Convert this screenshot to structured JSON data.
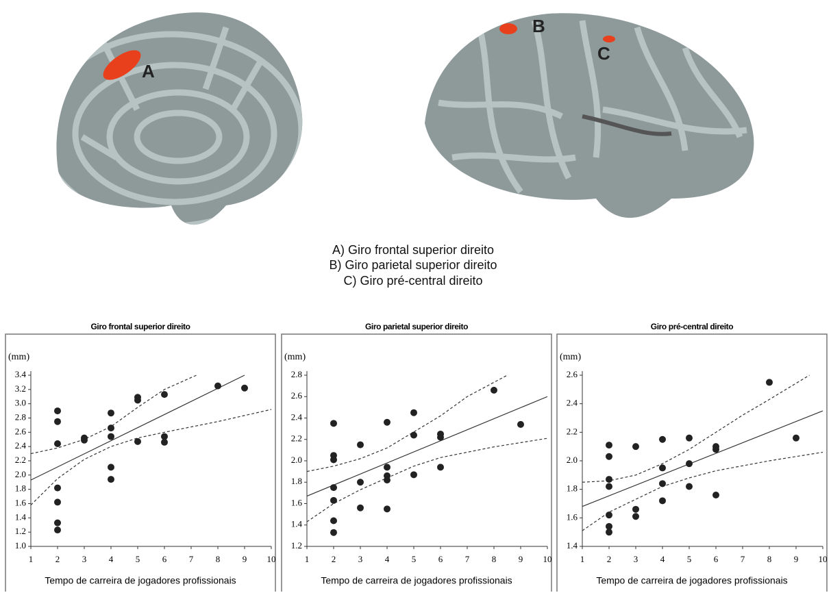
{
  "figure": {
    "region_labels": [
      "A",
      "B",
      "C"
    ],
    "legend": [
      "A) Giro frontal superior direito",
      "B) Giro parietal superior direito",
      "C) Giro pré-central direito"
    ]
  },
  "chart_data": [
    {
      "type": "scatter",
      "title": "Giro frontal superior direito",
      "y_label": "(mm)",
      "x_label": "Tempo de carreira de jogadores profissionais",
      "x": [
        2,
        2,
        2,
        2,
        2,
        2,
        2,
        3,
        3,
        4,
        4,
        4,
        4,
        4,
        5,
        5,
        5,
        6,
        6,
        6,
        8,
        9
      ],
      "y": [
        2.9,
        2.75,
        2.44,
        1.82,
        1.62,
        1.33,
        1.23,
        2.52,
        2.49,
        2.87,
        2.66,
        2.54,
        2.11,
        1.94,
        3.09,
        3.05,
        2.47,
        3.13,
        2.54,
        2.46,
        3.25,
        3.22
      ],
      "fit": {
        "x": [
          1,
          9
        ],
        "y": [
          1.93,
          3.4
        ]
      },
      "upper": {
        "x": [
          1,
          2,
          3,
          4,
          5,
          6,
          7.2
        ],
        "y": [
          2.3,
          2.38,
          2.5,
          2.68,
          2.95,
          3.2,
          3.4
        ]
      },
      "lower": {
        "x": [
          1,
          2,
          3,
          4,
          5,
          6,
          8,
          10
        ],
        "y": [
          1.58,
          1.95,
          2.22,
          2.4,
          2.52,
          2.6,
          2.75,
          2.92
        ]
      },
      "xlim": [
        1,
        10
      ],
      "xticks": [
        1,
        2,
        3,
        4,
        5,
        6,
        7,
        8,
        9,
        10
      ],
      "ylim": [
        1,
        3.4
      ],
      "yticks": [
        {
          "value": 1,
          "label": "1.0"
        },
        1.2,
        1.4,
        1.6,
        1.8,
        {
          "value": 2,
          "label": "2.0"
        },
        2.2,
        2.4,
        2.6,
        2.8,
        {
          "value": 3,
          "label": "3.0"
        },
        3.2,
        3.4
      ],
      "color": "#222222"
    },
    {
      "type": "scatter",
      "title": "Giro parietal superior direito",
      "y_label": "(mm)",
      "x_label": "Tempo de carreira de jogadores profissionais",
      "x": [
        2,
        2,
        2,
        2,
        2,
        2,
        2,
        3,
        3,
        3,
        4,
        4,
        4,
        4,
        4,
        5,
        5,
        5,
        6,
        6,
        6,
        8,
        9
      ],
      "y": [
        2.35,
        2.05,
        2.01,
        1.75,
        1.63,
        1.44,
        1.33,
        2.15,
        1.8,
        1.56,
        2.36,
        1.94,
        1.86,
        1.82,
        1.55,
        2.45,
        2.24,
        1.87,
        2.25,
        2.22,
        1.94,
        2.66,
        2.34
      ],
      "fit": {
        "x": [
          1,
          10
        ],
        "y": [
          1.67,
          2.6
        ]
      },
      "upper": {
        "x": [
          1,
          2,
          3,
          4,
          5,
          6,
          7,
          8.5
        ],
        "y": [
          1.9,
          1.95,
          2.02,
          2.12,
          2.27,
          2.42,
          2.6,
          2.8
        ]
      },
      "lower": {
        "x": [
          1,
          2,
          3,
          4,
          5,
          6,
          8,
          10
        ],
        "y": [
          1.43,
          1.6,
          1.73,
          1.84,
          1.95,
          2.03,
          2.13,
          2.21
        ]
      },
      "xlim": [
        1,
        10
      ],
      "xticks": [
        1,
        2,
        3,
        4,
        5,
        6,
        7,
        8,
        9,
        10
      ],
      "ylim": [
        1.2,
        2.8
      ],
      "yticks": [
        1.2,
        1.4,
        1.6,
        1.8,
        {
          "value": 2,
          "label": "2.0"
        },
        2.2,
        2.4,
        2.6,
        2.8
      ],
      "color": "#222222"
    },
    {
      "type": "scatter",
      "title": "Giro pré-central direito",
      "y_label": "(mm)",
      "x_label": "Tempo de carreira de jogadores profissionais",
      "x": [
        2,
        2,
        2,
        2,
        2,
        2,
        2,
        3,
        3,
        3,
        4,
        4,
        4,
        4,
        5,
        5,
        5,
        6,
        6,
        6,
        8,
        9
      ],
      "y": [
        2.11,
        2.03,
        1.87,
        1.82,
        1.62,
        1.54,
        1.5,
        2.1,
        1.66,
        1.61,
        2.15,
        1.95,
        1.84,
        1.72,
        2.16,
        1.98,
        1.82,
        2.1,
        2.08,
        1.76,
        2.55,
        2.16
      ],
      "fit": {
        "x": [
          1,
          10
        ],
        "y": [
          1.68,
          2.35
        ]
      },
      "upper": {
        "x": [
          1,
          2,
          3,
          4,
          5,
          6,
          7,
          8,
          9.5
        ],
        "y": [
          1.85,
          1.86,
          1.9,
          1.98,
          2.08,
          2.2,
          2.32,
          2.43,
          2.6
        ]
      },
      "lower": {
        "x": [
          1,
          2,
          3,
          4,
          5,
          6,
          8,
          10
        ],
        "y": [
          1.51,
          1.64,
          1.73,
          1.82,
          1.88,
          1.93,
          2.0,
          2.06
        ]
      },
      "xlim": [
        1,
        10
      ],
      "xticks": [
        1,
        2,
        3,
        4,
        5,
        6,
        7,
        8,
        9,
        10
      ],
      "ylim": [
        1.4,
        2.6
      ],
      "yticks": [
        1.4,
        1.6,
        1.8,
        {
          "value": 2,
          "label": "2.0"
        },
        2.2,
        2.4,
        2.6
      ],
      "color": "#222222"
    }
  ]
}
